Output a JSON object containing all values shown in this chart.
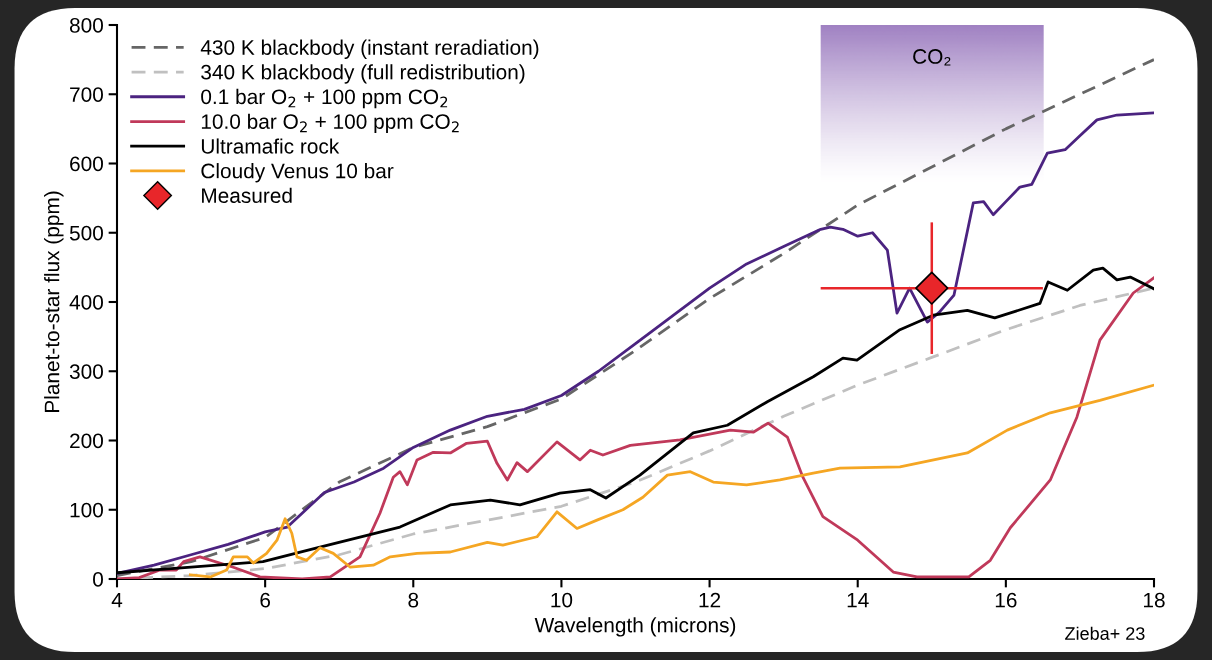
{
  "chart_data": {
    "type": "line",
    "xlabel": "Wavelength (microns)",
    "ylabel": "Planet-to-star flux (ppm)",
    "xlim": [
      4,
      18
    ],
    "xticks": [
      4,
      6,
      8,
      10,
      12,
      14,
      16,
      18
    ],
    "ylim": [
      0,
      800
    ],
    "yticks": [
      0,
      100,
      200,
      300,
      400,
      500,
      600,
      700,
      800
    ],
    "grid": false,
    "legend": "top left",
    "bands": [
      {
        "axis": "x",
        "from": 13.5,
        "to": 16.5,
        "label": "CO₂",
        "color": "#9b7bbf"
      }
    ],
    "annotations": [
      "Zieba+ 23"
    ],
    "series": [
      {
        "name": "430 K blackbody (instant reradiation)",
        "color": "#666666",
        "line_style": "dashed",
        "x": [
          4,
          5,
          6,
          6.5,
          7,
          8,
          9,
          10,
          11,
          12,
          13,
          14,
          15,
          16,
          17,
          18
        ],
        "values": [
          5,
          25,
          60,
          100,
          140,
          190,
          220,
          260,
          330,
          405,
          470,
          540,
          595,
          650,
          700,
          750
        ]
      },
      {
        "name": "340 K blackbody (full redistribution)",
        "color": "#c0c0c0",
        "line_style": "dashed",
        "x": [
          4,
          5,
          6,
          7,
          8,
          9,
          10,
          11,
          12,
          13,
          14,
          15,
          16,
          17,
          18
        ],
        "values": [
          0,
          5,
          15,
          35,
          65,
          85,
          105,
          140,
          185,
          235,
          280,
          320,
          360,
          395,
          420
        ]
      },
      {
        "name": "0.1 bar O$_{2}$ + 100 ppm CO$_{2}$",
        "color": "#4b2380",
        "line_style": "solid",
        "x": [
          4,
          4.5,
          5,
          5.5,
          6,
          6.3,
          6.6,
          6.8,
          7.2,
          7.6,
          8,
          8.5,
          9,
          9.5,
          10,
          10.5,
          11,
          11.5,
          12,
          12.5,
          13,
          13.5,
          13.63,
          13.8,
          14,
          14.2,
          14.4,
          14.53,
          14.7,
          14.94,
          15.1,
          15.3,
          15.56,
          15.7,
          15.83,
          16.0,
          16.19,
          16.35,
          16.56,
          16.8,
          17.0,
          17.23,
          17.5,
          18
        ],
        "values": [
          8,
          20,
          35,
          50,
          68,
          75,
          105,
          125,
          140,
          160,
          190,
          215,
          235,
          245,
          265,
          300,
          340,
          380,
          420,
          455,
          480,
          505,
          508,
          505,
          495,
          500,
          475,
          384,
          420,
          371,
          385,
          410,
          543,
          545,
          526,
          545,
          566,
          570,
          615,
          620,
          640,
          663,
          670,
          673
        ]
      },
      {
        "name": "10.0 bar O$_{2}$ + 100 ppm CO$_{2}$",
        "color": "#c0395a",
        "line_style": "solid",
        "x": [
          4,
          4.3,
          4.58,
          4.8,
          4.9,
          5.12,
          5.57,
          5.93,
          6.5,
          6.88,
          7.28,
          7.55,
          7.73,
          7.82,
          7.92,
          8.05,
          8.27,
          8.5,
          8.72,
          9.0,
          9.13,
          9.27,
          9.4,
          9.54,
          9.94,
          10.25,
          10.39,
          10.56,
          10.93,
          11.6,
          12.28,
          12.59,
          12.79,
          13.05,
          13.26,
          13.53,
          14.0,
          14.48,
          14.8,
          15.5,
          15.79,
          16.06,
          16.6,
          16.96,
          17.27,
          17.72,
          18
        ],
        "values": [
          0,
          2,
          13,
          13,
          25,
          32,
          17,
          3,
          0,
          3,
          32,
          95,
          147,
          155,
          136,
          172,
          183,
          182,
          196,
          199,
          167,
          143,
          168,
          155,
          198,
          172,
          186,
          179,
          193,
          201,
          215,
          212,
          225,
          205,
          147,
          90,
          56,
          10,
          3,
          3,
          27,
          74,
          143,
          234,
          345,
          413,
          435
        ]
      },
      {
        "name": "Ultramafic rock",
        "color": "#000000",
        "line_style": "solid",
        "x": [
          4,
          5,
          5.97,
          6.7,
          7.82,
          8.5,
          9.04,
          9.44,
          9.98,
          10.39,
          10.6,
          11.06,
          11.78,
          12.24,
          12.78,
          13.4,
          13.8,
          13.99,
          14.57,
          15.02,
          15.48,
          15.85,
          16.46,
          16.57,
          16.83,
          17.18,
          17.31,
          17.5,
          17.68,
          18
        ],
        "values": [
          9,
          17,
          25,
          45,
          75,
          107,
          114,
          107,
          124,
          129,
          117,
          150,
          211,
          222,
          256,
          292,
          319,
          316,
          360,
          381,
          388,
          377,
          398,
          429,
          417,
          446,
          449,
          432,
          436,
          419
        ]
      },
      {
        "name": "Cloudy Venus 10 bar",
        "color": "#f5a623",
        "line_style": "solid",
        "x": [
          4.99,
          5.26,
          5.48,
          5.57,
          5.76,
          5.84,
          6.02,
          6.16,
          6.27,
          6.36,
          6.43,
          6.56,
          6.74,
          6.92,
          7.15,
          7.46,
          7.69,
          8.05,
          8.5,
          9.0,
          9.21,
          9.67,
          9.94,
          10.21,
          10.48,
          10.83,
          11.1,
          11.43,
          11.74,
          12.05,
          12.5,
          12.95,
          13.4,
          13.76,
          14.57,
          15.48,
          16.02,
          16.6,
          17.27,
          18
        ],
        "values": [
          6,
          3,
          13,
          32,
          32,
          23,
          37,
          56,
          87,
          66,
          32,
          27,
          45,
          37,
          17,
          20,
          32,
          37,
          39,
          53,
          49,
          61,
          97,
          73,
          85,
          100,
          118,
          150,
          155,
          140,
          136,
          143,
          153,
          160,
          162,
          182,
          215,
          240,
          258,
          280
        ]
      },
      {
        "name": "Measured",
        "type": "scatter",
        "marker": "diamond",
        "color": "#e8262a",
        "x": [
          15
        ],
        "values": [
          420
        ],
        "errors": [
          95
        ],
        "xerrors": [
          1.5
        ]
      }
    ]
  }
}
